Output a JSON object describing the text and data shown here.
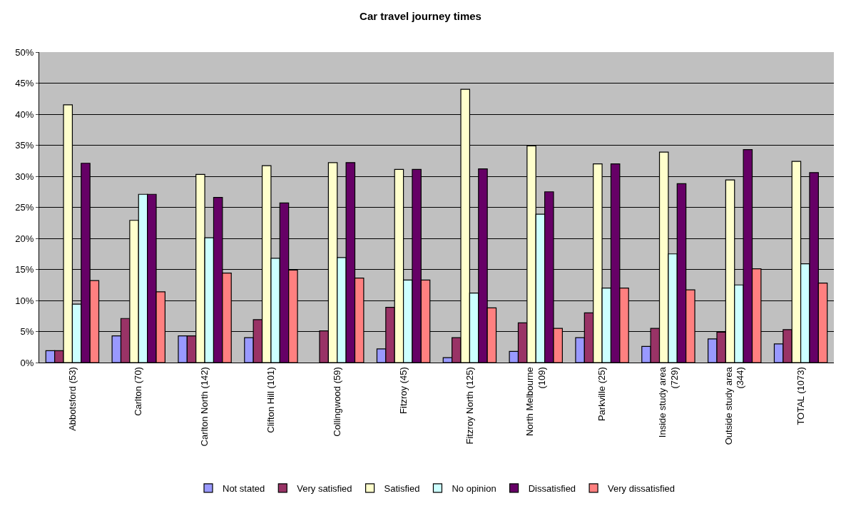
{
  "chart_data": {
    "type": "bar",
    "title": "Car travel journey times",
    "categories": [
      "Abbotsford (53)",
      "Carlton (70)",
      "Carlton North (142)",
      "Clifton Hill (101)",
      "Collingwood (59)",
      "Fitzroy (45)",
      "Fitzroy North (125)",
      "North Melbourne (109)",
      "Parkville (25)",
      "Inside study area (729)",
      "Outside study area (344)",
      "TOTAL (1073)"
    ],
    "series": [
      {
        "name": "Not stated",
        "color": "#9999ff",
        "values": [
          1.9,
          4.3,
          4.3,
          4.0,
          null,
          2.2,
          0.8,
          1.8,
          4.0,
          2.6,
          3.8,
          3.0
        ]
      },
      {
        "name": "Very satisfied",
        "color": "#993366",
        "values": [
          1.9,
          7.1,
          4.3,
          6.9,
          5.1,
          8.9,
          4.0,
          6.4,
          8.0,
          5.5,
          4.9,
          5.3
        ]
      },
      {
        "name": "Satisfied",
        "color": "#ffffcc",
        "values": [
          41.5,
          22.9,
          30.3,
          31.7,
          32.2,
          31.1,
          44.0,
          34.9,
          32.0,
          33.9,
          29.4,
          32.4
        ]
      },
      {
        "name": "No opinion",
        "color": "#ccffff",
        "values": [
          9.4,
          27.1,
          20.1,
          16.8,
          16.9,
          13.3,
          11.2,
          23.9,
          12.0,
          17.5,
          12.5,
          15.9
        ]
      },
      {
        "name": "Dissatisfied",
        "color": "#660066",
        "values": [
          32.1,
          27.1,
          26.6,
          25.7,
          32.2,
          31.1,
          31.2,
          27.5,
          32.0,
          28.8,
          34.3,
          30.6
        ]
      },
      {
        "name": "Very dissatisfied",
        "color": "#ff8080",
        "values": [
          13.2,
          11.4,
          14.4,
          14.9,
          13.6,
          13.3,
          8.8,
          5.5,
          12.0,
          11.7,
          15.1,
          12.8
        ]
      }
    ],
    "ylim": [
      0,
      50
    ],
    "yticks": [
      {
        "value": 0,
        "label": "0%"
      },
      {
        "value": 5,
        "label": "5%"
      },
      {
        "value": 10,
        "label": "10%"
      },
      {
        "value": 15,
        "label": "15%"
      },
      {
        "value": 20,
        "label": "20%"
      },
      {
        "value": 25,
        "label": "25%"
      },
      {
        "value": 30,
        "label": "30%"
      },
      {
        "value": 35,
        "label": "35%"
      },
      {
        "value": 40,
        "label": "40%"
      },
      {
        "value": 45,
        "label": "45%"
      },
      {
        "value": 50,
        "label": "50%"
      }
    ],
    "grid": "y",
    "legend": "bottom"
  }
}
